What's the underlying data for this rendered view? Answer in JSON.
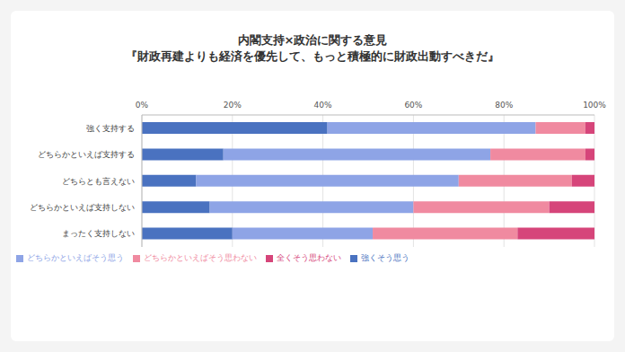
{
  "chart_data": {
    "type": "bar",
    "title": "内閣支持×政治に関する意見",
    "subtitle": "『財政再建よりも経済を優先して、もっと積極的に財政出動すべきだ』",
    "orientation": "horizontal",
    "stacked": true,
    "grid": true,
    "legend": "bottom",
    "categories": [
      "強く支持する",
      "どちらかといえば支持する",
      "どちらとも言えない",
      "どちらかといえば支持しない",
      "まったく支持しない"
    ],
    "xlim": [
      0,
      100
    ],
    "xticks": [
      {
        "value": 0,
        "label": "0%"
      },
      {
        "value": 20,
        "label": "20%"
      },
      {
        "value": 40,
        "label": "40%"
      },
      {
        "value": 60,
        "label": "60%"
      },
      {
        "value": 80,
        "label": "80%"
      },
      {
        "value": 100,
        "label": "100%"
      }
    ],
    "series": [
      {
        "name": "強くそう思う",
        "color": "#4a72c0",
        "values": [
          41,
          18,
          12,
          15,
          20
        ]
      },
      {
        "name": "どちらかといえばそう思う",
        "color": "#8ea4e6",
        "values": [
          46,
          59,
          58,
          45,
          31
        ]
      },
      {
        "name": "どちらかといえばそう思わない",
        "color": "#f08aa0",
        "values": [
          11,
          21,
          25,
          30,
          32
        ]
      },
      {
        "name": "全くそう思わない",
        "color": "#d6457a",
        "values": [
          2,
          2,
          5,
          10,
          17
        ]
      }
    ]
  }
}
